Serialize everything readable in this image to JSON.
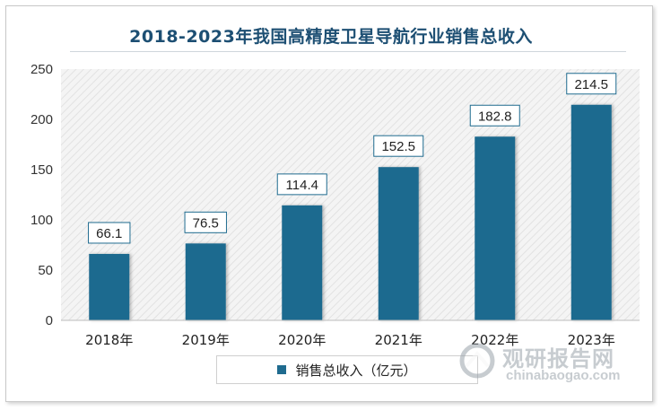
{
  "chart_data": {
    "type": "bar",
    "title": "2018-2023年我国高精度卫星导航行业销售总收入",
    "categories": [
      "2018年",
      "2019年",
      "2020年",
      "2021年",
      "2022年",
      "2023年"
    ],
    "series": [
      {
        "name": "销售总收入（亿元）",
        "values": [
          66.1,
          76.5,
          114.4,
          152.5,
          182.8,
          214.5
        ]
      }
    ],
    "ylim": [
      0,
      250
    ],
    "yticks": [
      0,
      50,
      100,
      150,
      200,
      250
    ],
    "xlabel": "",
    "ylabel": "",
    "grid": false,
    "legend_position": "bottom",
    "bar_color": "#1f6b8f"
  },
  "watermark": {
    "brand_cn": "观研报告网",
    "brand_en": "chinabaogao.com"
  }
}
